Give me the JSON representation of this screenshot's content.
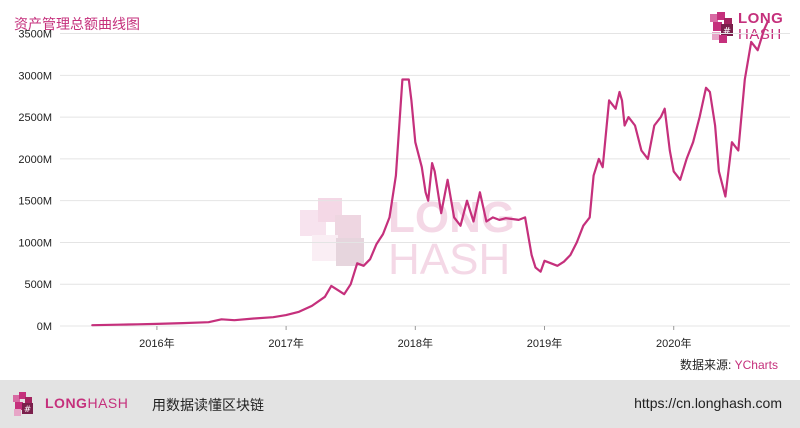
{
  "header": {
    "title": "资产管理总额曲线图"
  },
  "logo": {
    "word1": "LONG",
    "word2": "HASH"
  },
  "source": {
    "label": "数据来源:",
    "name": "YCharts"
  },
  "footer": {
    "brand_long": "LONG",
    "brand_hash": "HASH",
    "tagline": "用数据读懂区块链",
    "url": "https://cn.longhash.com"
  },
  "colors": {
    "accent": "#c5307c",
    "footer_bg": "#e3e3e3"
  },
  "chart_data": {
    "type": "line",
    "title": "资产管理总额曲线图",
    "xlabel": "",
    "ylabel": "",
    "x_ticks": [
      "2016年",
      "2017年",
      "2018年",
      "2019年",
      "2020年"
    ],
    "y_ticks": [
      "0M",
      "500M",
      "1000M",
      "1500M",
      "2000M",
      "2500M",
      "3000M",
      "3500M"
    ],
    "ylim": [
      0,
      3650
    ],
    "xlim": [
      2015.25,
      2020.9
    ],
    "grid": true,
    "legend": "none",
    "series": [
      {
        "x": [
          2015.5,
          2015.7,
          2015.85,
          2016.0,
          2016.2,
          2016.4,
          2016.5,
          2016.6,
          2016.75,
          2016.9,
          2017.0,
          2017.1,
          2017.2,
          2017.3,
          2017.35,
          2017.4,
          2017.45,
          2017.5,
          2017.55,
          2017.6,
          2017.65,
          2017.7,
          2017.75,
          2017.8,
          2017.85,
          2017.9,
          2017.95,
          2017.97,
          2018.0,
          2018.05,
          2018.08,
          2018.1,
          2018.13,
          2018.15,
          2018.2,
          2018.25,
          2018.3,
          2018.35,
          2018.4,
          2018.45,
          2018.5,
          2018.55,
          2018.6,
          2018.65,
          2018.7,
          2018.75,
          2018.8,
          2018.85,
          2018.9,
          2018.93,
          2018.97,
          2019.0,
          2019.05,
          2019.1,
          2019.15,
          2019.2,
          2019.25,
          2019.3,
          2019.35,
          2019.38,
          2019.42,
          2019.45,
          2019.5,
          2019.55,
          2019.58,
          2019.6,
          2019.62,
          2019.65,
          2019.7,
          2019.75,
          2019.8,
          2019.85,
          2019.9,
          2019.93,
          2019.97,
          2020.0,
          2020.05,
          2020.1,
          2020.15,
          2020.2,
          2020.25,
          2020.28,
          2020.32,
          2020.35,
          2020.4,
          2020.45,
          2020.5,
          2020.55,
          2020.6,
          2020.65,
          2020.7,
          2020.73
        ],
        "values": [
          10,
          15,
          20,
          25,
          35,
          45,
          80,
          70,
          90,
          105,
          130,
          170,
          240,
          350,
          480,
          430,
          380,
          500,
          750,
          720,
          800,
          980,
          1100,
          1300,
          1800,
          2950,
          2950,
          2700,
          2200,
          1900,
          1600,
          1500,
          1950,
          1850,
          1350,
          1750,
          1300,
          1200,
          1500,
          1250,
          1600,
          1250,
          1300,
          1270,
          1290,
          1280,
          1270,
          1300,
          850,
          700,
          650,
          780,
          750,
          720,
          770,
          850,
          1000,
          1200,
          1300,
          1800,
          2000,
          1900,
          2700,
          2600,
          2800,
          2700,
          2400,
          2500,
          2400,
          2100,
          2000,
          2400,
          2500,
          2600,
          2100,
          1850,
          1750,
          2000,
          2200,
          2500,
          2850,
          2800,
          2400,
          1850,
          1550,
          2200,
          2100,
          2950,
          3400,
          3300,
          3550,
          3650
        ]
      }
    ]
  }
}
